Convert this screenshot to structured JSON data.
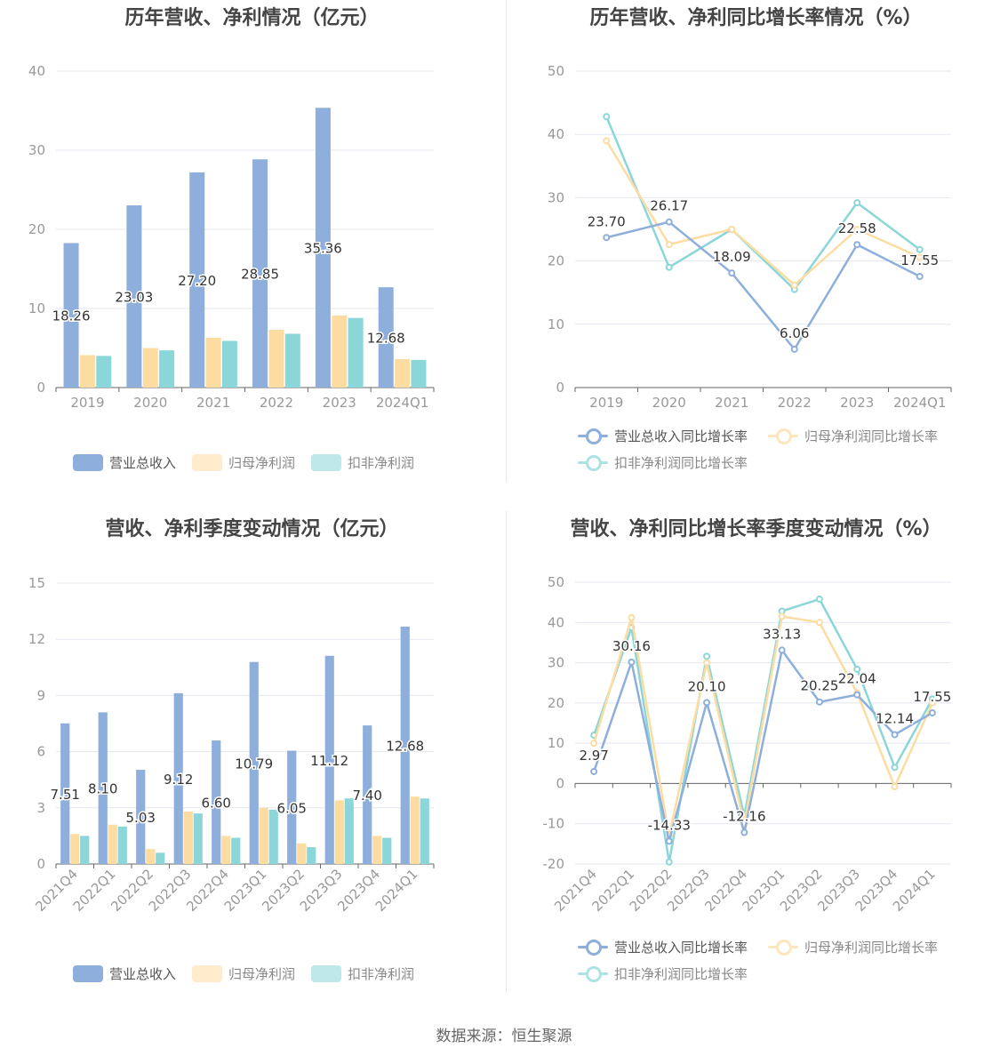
{
  "colors": {
    "revenue": "#8eaedb",
    "net_profit": "#fddca2",
    "deducted_net_profit": "#8ad6d9",
    "revenue_yoy": "#8eaedb",
    "net_profit_yoy": "#fddca2",
    "deducted_yoy": "#8ad6d9",
    "grid": "#e3e7ef",
    "axis": "#999999",
    "text": "#333333"
  },
  "source_note": "数据来源：恒生聚源",
  "chart_data": [
    {
      "type": "bar",
      "title": "历年营收、净利情况（亿元）",
      "categories": [
        "2019",
        "2020",
        "2021",
        "2022",
        "2023",
        "2024Q1"
      ],
      "ylim": [
        0,
        40
      ],
      "yticks": [
        "0",
        "10",
        "20",
        "30",
        "40"
      ],
      "grid": true,
      "legend_position": "bottom",
      "series": [
        {
          "name": "营业总收入",
          "values": [
            18.26,
            23.03,
            27.2,
            28.85,
            35.36,
            12.68
          ],
          "labels": [
            "18.26",
            "23.03",
            "27.20",
            "28.85",
            "35.36",
            "12.68"
          ]
        },
        {
          "name": "归母净利润",
          "values": [
            4.1,
            5.0,
            6.3,
            7.3,
            9.1,
            3.6
          ]
        },
        {
          "name": "扣非净利润",
          "values": [
            4.0,
            4.7,
            5.9,
            6.8,
            8.8,
            3.5
          ]
        }
      ]
    },
    {
      "type": "line",
      "title": "历年营收、净利同比增长率情况（%）",
      "categories": [
        "2019",
        "2020",
        "2021",
        "2022",
        "2023",
        "2024Q1"
      ],
      "ylim": [
        0,
        50
      ],
      "yticks": [
        "0",
        "10",
        "20",
        "30",
        "40",
        "50"
      ],
      "grid": true,
      "legend_position": "bottom",
      "series": [
        {
          "name": "营业总收入同比增长率",
          "values": [
            23.7,
            26.17,
            18.09,
            6.06,
            22.58,
            17.55
          ],
          "labels": [
            "23.70",
            "26.17",
            "18.09",
            "6.06",
            "22.58",
            "17.55"
          ]
        },
        {
          "name": "归母净利润同比增长率",
          "values": [
            39.0,
            22.6,
            25.0,
            16.2,
            25.0,
            20.6
          ]
        },
        {
          "name": "扣非净利润同比增长率",
          "values": [
            42.8,
            19.0,
            25.0,
            15.5,
            29.2,
            21.8
          ]
        }
      ]
    },
    {
      "type": "bar",
      "title": "营收、净利季度变动情况（亿元）",
      "categories": [
        "2021Q4",
        "2022Q1",
        "2022Q2",
        "2022Q3",
        "2022Q4",
        "2023Q1",
        "2023Q2",
        "2023Q3",
        "2023Q4",
        "2024Q1"
      ],
      "ylim": [
        0,
        15
      ],
      "yticks": [
        "0",
        "3",
        "6",
        "9",
        "12",
        "15"
      ],
      "grid": true,
      "legend_position": "bottom",
      "series": [
        {
          "name": "营业总收入",
          "values": [
            7.51,
            8.1,
            5.03,
            9.12,
            6.6,
            10.79,
            6.05,
            11.12,
            7.4,
            12.68
          ],
          "labels": [
            "7.51",
            "8.10",
            "5.03",
            "9.12",
            "6.60",
            "10.79",
            "6.05",
            "11.12",
            "7.40",
            "12.68"
          ]
        },
        {
          "name": "归母净利润",
          "values": [
            1.6,
            2.1,
            0.8,
            2.8,
            1.5,
            3.0,
            1.1,
            3.4,
            1.5,
            3.6
          ]
        },
        {
          "name": "扣非净利润",
          "values": [
            1.5,
            2.0,
            0.6,
            2.7,
            1.4,
            2.9,
            0.9,
            3.5,
            1.4,
            3.5
          ]
        }
      ]
    },
    {
      "type": "line",
      "title": "营收、净利同比增长率季度变动情况（%）",
      "categories": [
        "2021Q4",
        "2022Q1",
        "2022Q2",
        "2022Q3",
        "2022Q4",
        "2023Q1",
        "2023Q2",
        "2023Q3",
        "2023Q4",
        "2024Q1"
      ],
      "ylim": [
        -20,
        50
      ],
      "yticks": [
        "-20",
        "-10",
        "0",
        "10",
        "20",
        "30",
        "40",
        "50"
      ],
      "grid": true,
      "legend_position": "bottom",
      "series": [
        {
          "name": "营业总收入同比增长率",
          "values": [
            2.97,
            30.16,
            -14.33,
            20.1,
            -12.16,
            33.13,
            20.25,
            22.04,
            12.14,
            17.55
          ],
          "labels": [
            "2.97",
            "30.16",
            "-14.33",
            "20.10",
            "-12.16",
            "33.13",
            "20.25",
            "22.04",
            "12.14",
            "17.55"
          ]
        },
        {
          "name": "归母净利润同比增长率",
          "values": [
            10.0,
            41.2,
            -13.0,
            30.0,
            -10.0,
            41.5,
            40.0,
            22.5,
            -0.8,
            20.0
          ]
        },
        {
          "name": "扣非净利润同比增长率",
          "values": [
            12.0,
            38.7,
            -19.5,
            31.6,
            -8.0,
            42.8,
            45.8,
            28.4,
            4.0,
            21.0
          ]
        }
      ]
    }
  ]
}
